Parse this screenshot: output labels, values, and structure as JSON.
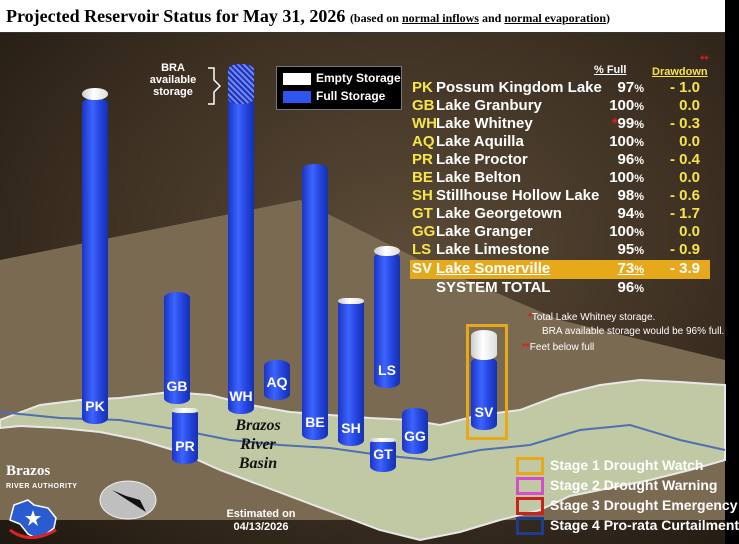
{
  "header": {
    "title": "Projected Reservoir Status for May 31, 2026",
    "subtitle_prefix": "(based on ",
    "subtitle_inflows": "normal inflows",
    "subtitle_and": " and ",
    "subtitle_evap": "normal evaporation",
    "subtitle_suffix": ")"
  },
  "legend": {
    "empty_label": "Empty Storage",
    "full_label": "Full Storage",
    "bra_note": "BRA available storage"
  },
  "table": {
    "pct_header": "% Full",
    "drawdown_header": "Drawdown",
    "drawdown_marker": "**",
    "pct_unit": "%",
    "rows": [
      {
        "code": "PK",
        "name": "Possum Kingdom Lake",
        "pct": "97",
        "dd": "- 1.0"
      },
      {
        "code": "GB",
        "name": "Lake Granbury",
        "pct": "100",
        "dd": "0.0"
      },
      {
        "code": "WH",
        "name": "Lake Whitney",
        "pct": "99",
        "dd": "- 0.3",
        "star": "*"
      },
      {
        "code": "AQ",
        "name": "Lake Aquilla",
        "pct": "100",
        "dd": "0.0"
      },
      {
        "code": "PR",
        "name": "Lake Proctor",
        "pct": "96",
        "dd": "- 0.4"
      },
      {
        "code": "BE",
        "name": "Lake Belton",
        "pct": "100",
        "dd": "0.0"
      },
      {
        "code": "SH",
        "name": "Stillhouse Hollow Lake",
        "pct": "98",
        "dd": "- 0.6"
      },
      {
        "code": "GT",
        "name": "Lake Georgetown",
        "pct": "94",
        "dd": "- 1.7"
      },
      {
        "code": "GG",
        "name": "Lake Granger",
        "pct": "100",
        "dd": "0.0"
      },
      {
        "code": "LS",
        "name": "Lake Limestone",
        "pct": "95",
        "dd": "- 0.9"
      },
      {
        "code": "SV",
        "name": "Lake Somerville",
        "pct": "73",
        "dd": "- 3.9"
      }
    ],
    "total_label": "SYSTEM TOTAL",
    "total_pct": "96"
  },
  "notes": {
    "star1": "*",
    "n1": "Total Lake Whitney storage.",
    "n2": "BRA available storage would be 96% full.",
    "star2": "**",
    "n3": "Feet below full"
  },
  "stages": [
    {
      "label": "Stage 1 Drought Watch",
      "color": "#e7a91c"
    },
    {
      "label": "Stage 2 Drought Warning",
      "color": "#d24fc9"
    },
    {
      "label": "Stage 3 Drought Emergency",
      "color": "#c7221c"
    },
    {
      "label": "Stage 4 Pro-rata Curtailment",
      "color": "#1d3d8f"
    }
  ],
  "map": {
    "basin_line1": "Brazos",
    "basin_line2": "River",
    "basin_line3": "Basin",
    "estimated_line1": "Estimated on",
    "estimated_line2": "04/13/2026"
  },
  "logo": {
    "word": "Brazos",
    "sub": "RIVER AUTHORITY"
  },
  "colors": {
    "full": "#2e55f0",
    "empty": "#ffffff",
    "highlight": "#e7a91c",
    "code_text": "#f7e34a"
  }
}
